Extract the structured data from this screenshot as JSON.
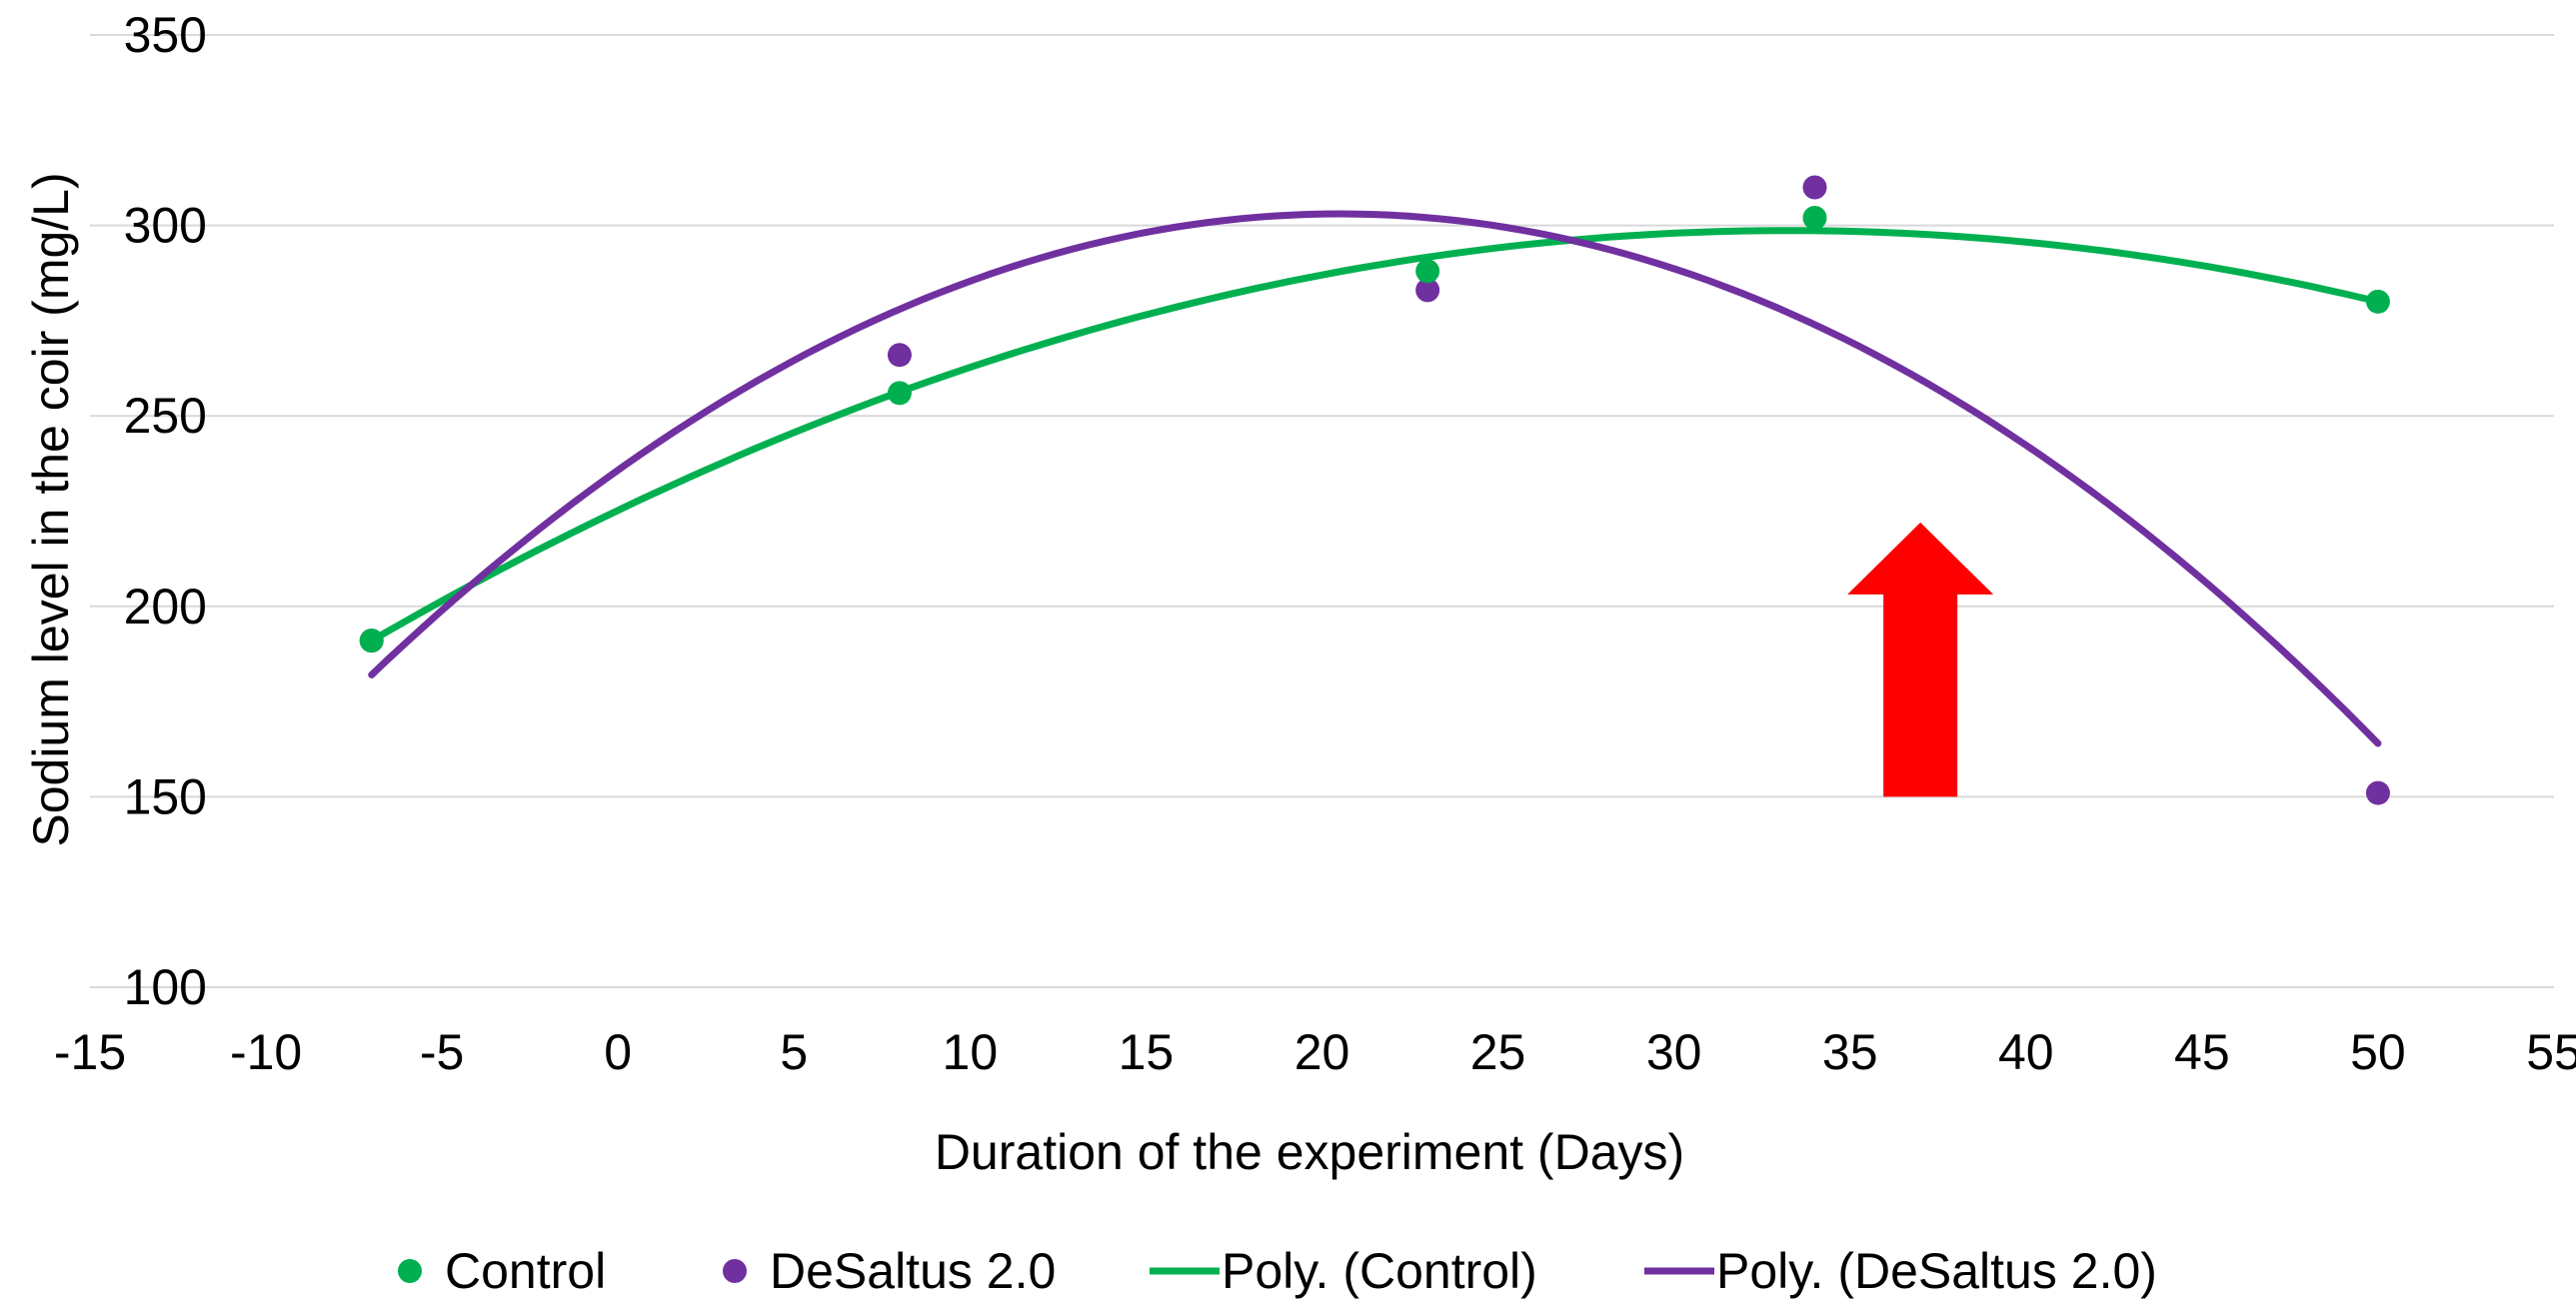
{
  "chart_data": {
    "type": "scatter",
    "title": "",
    "xlabel": "Duration of the experiment (Days)",
    "ylabel": "Sodium level in the coir (mg/L)",
    "xlim": [
      -15,
      55
    ],
    "ylim": [
      100,
      350
    ],
    "x_ticks": [
      -15,
      -10,
      -5,
      0,
      5,
      10,
      15,
      20,
      25,
      30,
      35,
      40,
      45,
      50,
      55
    ],
    "y_ticks": [
      100,
      150,
      200,
      250,
      300,
      350
    ],
    "grid": "horizontal",
    "legend_position": "bottom",
    "series": [
      {
        "name": "Control",
        "kind": "points",
        "color": "#00b050",
        "points": [
          [
            -7,
            191
          ],
          [
            8,
            256
          ],
          [
            23,
            288
          ],
          [
            34,
            302
          ],
          [
            50,
            280
          ]
        ]
      },
      {
        "name": "DeSaltus 2.0",
        "kind": "points",
        "color": "#7030a0",
        "points": [
          [
            -7,
            191
          ],
          [
            8,
            266
          ],
          [
            23,
            283
          ],
          [
            34,
            310
          ],
          [
            50,
            151
          ]
        ]
      },
      {
        "name": "Poly. (Control)",
        "kind": "trendline",
        "color": "#00b050",
        "x_range": [
          -7,
          50
        ],
        "curve": [
          [
            -7,
            191
          ],
          [
            20,
            287
          ],
          [
            50,
            280
          ]
        ]
      },
      {
        "name": "Poly. (DeSaltus 2.0)",
        "kind": "trendline",
        "color": "#7030a0",
        "x_range": [
          -7,
          50
        ],
        "curve": [
          [
            -7,
            182
          ],
          [
            20,
            303
          ],
          [
            50,
            164
          ]
        ]
      }
    ],
    "annotations": [
      {
        "kind": "arrow",
        "direction": "up",
        "color": "#ff0000",
        "x": 37,
        "y_from": 150,
        "y_to": 222
      }
    ]
  }
}
